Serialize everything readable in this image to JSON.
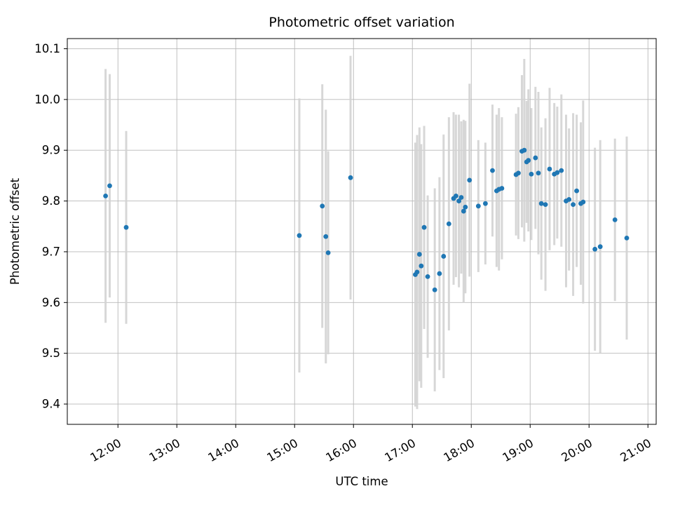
{
  "chart_data": {
    "type": "scatter",
    "title": "Photometric offset variation",
    "xlabel": "UTC time",
    "ylabel": "Photometric offset",
    "grid": true,
    "legend_position": "none",
    "point_color": "#1f77b4",
    "errorbar_color": "#d3d3d3",
    "grid_color": "#b8b8b8",
    "x_axis": {
      "lim_hours": [
        11.14,
        21.14
      ],
      "tick_hours": [
        12,
        13,
        14,
        15,
        16,
        17,
        18,
        19,
        20,
        21
      ],
      "tick_labels": [
        "12:00",
        "13:00",
        "14:00",
        "15:00",
        "16:00",
        "17:00",
        "18:00",
        "19:00",
        "20:00",
        "21:00"
      ]
    },
    "y_axis": {
      "lim": [
        9.36,
        10.12
      ],
      "ticks": [
        9.4,
        9.5,
        9.6,
        9.7,
        9.8,
        9.9,
        10.0,
        10.1
      ]
    },
    "series": [
      {
        "name": "photometric-offset",
        "points_format": [
          "utc_hour_decimal",
          "offset",
          "error"
        ],
        "points": [
          [
            11.79,
            9.81,
            0.25
          ],
          [
            11.86,
            9.83,
            0.22
          ],
          [
            12.14,
            9.748,
            0.19
          ],
          [
            15.08,
            9.732,
            0.27
          ],
          [
            15.47,
            9.79,
            0.24
          ],
          [
            15.53,
            9.73,
            0.25
          ],
          [
            15.57,
            9.698,
            0.2
          ],
          [
            15.95,
            9.846,
            0.24
          ],
          [
            17.05,
            9.655,
            0.26
          ],
          [
            17.08,
            9.66,
            0.27
          ],
          [
            17.12,
            9.695,
            0.25
          ],
          [
            17.15,
            9.672,
            0.24
          ],
          [
            17.2,
            9.748,
            0.2
          ],
          [
            17.26,
            9.651,
            0.16
          ],
          [
            17.38,
            9.625,
            0.2
          ],
          [
            17.46,
            9.657,
            0.19
          ],
          [
            17.53,
            9.691,
            0.24
          ],
          [
            17.62,
            9.755,
            0.21
          ],
          [
            17.7,
            9.805,
            0.17
          ],
          [
            17.74,
            9.81,
            0.16
          ],
          [
            17.79,
            9.8,
            0.17
          ],
          [
            17.83,
            9.807,
            0.15
          ],
          [
            17.87,
            9.78,
            0.18
          ],
          [
            17.9,
            9.788,
            0.17
          ],
          [
            17.97,
            9.841,
            0.19
          ],
          [
            18.12,
            9.79,
            0.13
          ],
          [
            18.24,
            9.795,
            0.12
          ],
          [
            18.36,
            9.86,
            0.13
          ],
          [
            18.43,
            9.82,
            0.15
          ],
          [
            18.47,
            9.823,
            0.16
          ],
          [
            18.52,
            9.825,
            0.14
          ],
          [
            18.76,
            9.852,
            0.12
          ],
          [
            18.8,
            9.855,
            0.13
          ],
          [
            18.86,
            9.898,
            0.15
          ],
          [
            18.9,
            9.9,
            0.18
          ],
          [
            18.94,
            9.877,
            0.12
          ],
          [
            18.97,
            9.88,
            0.14
          ],
          [
            19.02,
            9.853,
            0.13
          ],
          [
            19.09,
            9.885,
            0.14
          ],
          [
            19.14,
            9.855,
            0.16
          ],
          [
            19.19,
            9.795,
            0.15
          ],
          [
            19.26,
            9.793,
            0.17
          ],
          [
            19.33,
            9.863,
            0.16
          ],
          [
            19.41,
            9.853,
            0.14
          ],
          [
            19.46,
            9.856,
            0.13
          ],
          [
            19.53,
            9.86,
            0.15
          ],
          [
            19.61,
            9.8,
            0.17
          ],
          [
            19.66,
            9.803,
            0.14
          ],
          [
            19.73,
            9.793,
            0.18
          ],
          [
            19.79,
            9.82,
            0.15
          ],
          [
            19.86,
            9.795,
            0.16
          ],
          [
            19.9,
            9.798,
            0.2
          ],
          [
            20.1,
            9.705,
            0.2
          ],
          [
            20.19,
            9.71,
            0.21
          ],
          [
            20.44,
            9.763,
            0.16
          ],
          [
            20.64,
            9.727,
            0.2
          ]
        ]
      }
    ]
  }
}
